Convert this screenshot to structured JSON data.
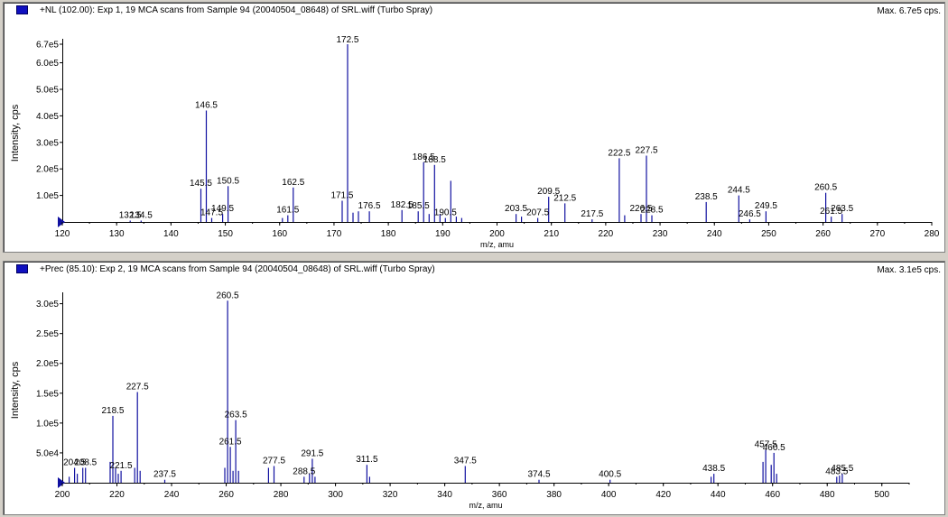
{
  "colors": {
    "peak": "#1010a0",
    "axis": "#000000",
    "label": "#000000",
    "marker": "#1010c0"
  },
  "panels": [
    {
      "title": "+NL (102.00): Exp 1, 19 MCA scans from Sample 94 (20040504_08648) of SRL.wiff (Turbo Spray)",
      "max_label": "Max. 6.7e5 cps."
    },
    {
      "title": "+Prec (85.10): Exp 2, 19 MCA scans from Sample 94 (20040504_08648) of SRL.wiff (Turbo Spray)",
      "max_label": "Max. 3.1e5 cps."
    }
  ],
  "chart_data": [
    {
      "type": "bar",
      "xlabel": "m/z, amu",
      "ylabel": "Intensity, cps",
      "xlim": [
        120,
        280
      ],
      "ylim": [
        0,
        670000
      ],
      "x_ticks": [
        120,
        130,
        140,
        150,
        160,
        170,
        180,
        190,
        200,
        210,
        220,
        230,
        240,
        250,
        260,
        270,
        280
      ],
      "x_tick_labels": [
        "120",
        "130",
        "140",
        "150",
        "160",
        "170",
        "180",
        "190",
        "200",
        "210",
        "220",
        "230",
        "240",
        "250",
        "260",
        "270",
        "280"
      ],
      "y_ticks": [
        100000,
        200000,
        300000,
        400000,
        500000,
        600000,
        670000
      ],
      "y_tick_labels": [
        "1.0e5",
        "2.0e5",
        "3.0e5",
        "4.0e5",
        "5.0e5",
        "6.0e5",
        "6.7e5"
      ],
      "peaks": [
        {
          "mz": 132.5,
          "intensity": 5000
        },
        {
          "mz": 134.5,
          "intensity": 5000
        },
        {
          "mz": 145.5,
          "intensity": 125000
        },
        {
          "mz": 146.5,
          "intensity": 420000
        },
        {
          "mz": 147.5,
          "intensity": 15000
        },
        {
          "mz": 149.5,
          "intensity": 30000
        },
        {
          "mz": 150.5,
          "intensity": 135000
        },
        {
          "mz": 160.5,
          "intensity": 15000
        },
        {
          "mz": 161.5,
          "intensity": 25000
        },
        {
          "mz": 162.5,
          "intensity": 130000
        },
        {
          "mz": 171.5,
          "intensity": 80000
        },
        {
          "mz": 172.5,
          "intensity": 670000
        },
        {
          "mz": 173.5,
          "intensity": 35000
        },
        {
          "mz": 174.5,
          "intensity": 40000
        },
        {
          "mz": 176.5,
          "intensity": 40000
        },
        {
          "mz": 182.5,
          "intensity": 45000
        },
        {
          "mz": 185.5,
          "intensity": 40000
        },
        {
          "mz": 186.5,
          "intensity": 225000
        },
        {
          "mz": 187.5,
          "intensity": 30000
        },
        {
          "mz": 188.5,
          "intensity": 215000
        },
        {
          "mz": 189.5,
          "intensity": 30000
        },
        {
          "mz": 190.5,
          "intensity": 15000
        },
        {
          "mz": 191.5,
          "intensity": 155000
        },
        {
          "mz": 192.5,
          "intensity": 20000
        },
        {
          "mz": 193.5,
          "intensity": 15000
        },
        {
          "mz": 203.5,
          "intensity": 30000
        },
        {
          "mz": 204.5,
          "intensity": 20000
        },
        {
          "mz": 207.5,
          "intensity": 15000
        },
        {
          "mz": 209.5,
          "intensity": 95000
        },
        {
          "mz": 212.5,
          "intensity": 70000
        },
        {
          "mz": 217.5,
          "intensity": 10000
        },
        {
          "mz": 222.5,
          "intensity": 240000
        },
        {
          "mz": 223.5,
          "intensity": 25000
        },
        {
          "mz": 226.5,
          "intensity": 30000
        },
        {
          "mz": 227.5,
          "intensity": 250000
        },
        {
          "mz": 228.5,
          "intensity": 25000
        },
        {
          "mz": 238.5,
          "intensity": 75000
        },
        {
          "mz": 244.5,
          "intensity": 100000
        },
        {
          "mz": 246.5,
          "intensity": 10000
        },
        {
          "mz": 249.5,
          "intensity": 40000
        },
        {
          "mz": 260.5,
          "intensity": 110000
        },
        {
          "mz": 261.5,
          "intensity": 20000
        },
        {
          "mz": 263.5,
          "intensity": 30000
        }
      ],
      "annotations": [
        {
          "mz": 132.5,
          "intensity": 5000,
          "text": "132.5"
        },
        {
          "mz": 134.5,
          "intensity": 5000,
          "text": "134.5"
        },
        {
          "mz": 145.5,
          "intensity": 125000,
          "text": "145.5"
        },
        {
          "mz": 146.5,
          "intensity": 420000,
          "text": "146.5"
        },
        {
          "mz": 147.5,
          "intensity": 15000,
          "text": "147.5"
        },
        {
          "mz": 149.5,
          "intensity": 30000,
          "text": "149.5"
        },
        {
          "mz": 150.5,
          "intensity": 135000,
          "text": "150.5"
        },
        {
          "mz": 161.5,
          "intensity": 25000,
          "text": "161.5"
        },
        {
          "mz": 162.5,
          "intensity": 130000,
          "text": "162.5"
        },
        {
          "mz": 171.5,
          "intensity": 80000,
          "text": "171.5"
        },
        {
          "mz": 172.5,
          "intensity": 670000,
          "text": "172.5"
        },
        {
          "mz": 176.5,
          "intensity": 40000,
          "text": "176.5"
        },
        {
          "mz": 182.5,
          "intensity": 45000,
          "text": "182.5"
        },
        {
          "mz": 185.5,
          "intensity": 40000,
          "text": "185.5"
        },
        {
          "mz": 186.5,
          "intensity": 225000,
          "text": "186.5"
        },
        {
          "mz": 188.5,
          "intensity": 215000,
          "text": "188.5"
        },
        {
          "mz": 190.5,
          "intensity": 15000,
          "text": "190.5"
        },
        {
          "mz": 203.5,
          "intensity": 30000,
          "text": "203.5"
        },
        {
          "mz": 207.5,
          "intensity": 15000,
          "text": "207.5"
        },
        {
          "mz": 209.5,
          "intensity": 95000,
          "text": "209.5"
        },
        {
          "mz": 212.5,
          "intensity": 70000,
          "text": "212.5"
        },
        {
          "mz": 217.5,
          "intensity": 10000,
          "text": "217.5"
        },
        {
          "mz": 222.5,
          "intensity": 240000,
          "text": "222.5"
        },
        {
          "mz": 226.5,
          "intensity": 30000,
          "text": "226.5"
        },
        {
          "mz": 227.5,
          "intensity": 250000,
          "text": "227.5"
        },
        {
          "mz": 228.5,
          "intensity": 25000,
          "text": "228.5"
        },
        {
          "mz": 238.5,
          "intensity": 75000,
          "text": "238.5"
        },
        {
          "mz": 244.5,
          "intensity": 100000,
          "text": "244.5"
        },
        {
          "mz": 246.5,
          "intensity": 10000,
          "text": "246.5"
        },
        {
          "mz": 249.5,
          "intensity": 40000,
          "text": "249.5"
        },
        {
          "mz": 260.5,
          "intensity": 110000,
          "text": "260.5"
        },
        {
          "mz": 261.5,
          "intensity": 20000,
          "text": "261.5"
        },
        {
          "mz": 263.5,
          "intensity": 30000,
          "text": "263.5"
        }
      ]
    },
    {
      "type": "bar",
      "xlabel": "m/z, amu",
      "ylabel": "Intensity, cps",
      "xlim": [
        200,
        510
      ],
      "ylim": [
        0,
        310000
      ],
      "x_ticks": [
        200,
        220,
        240,
        260,
        280,
        300,
        320,
        340,
        360,
        380,
        400,
        420,
        440,
        460,
        480,
        500
      ],
      "x_tick_labels": [
        "200",
        "220",
        "240",
        "260",
        "280",
        "300",
        "320",
        "340",
        "360",
        "380",
        "400",
        "420",
        "440",
        "460",
        "480",
        "500"
      ],
      "y_ticks": [
        50000,
        100000,
        150000,
        200000,
        250000,
        300000
      ],
      "y_tick_labels": [
        "5.0e4",
        "1.0e5",
        "1.5e5",
        "2.0e5",
        "2.5e5",
        "3.0e5"
      ],
      "peaks": [
        {
          "mz": 202.5,
          "intensity": 10000
        },
        {
          "mz": 204.5,
          "intensity": 25000
        },
        {
          "mz": 205.5,
          "intensity": 15000
        },
        {
          "mz": 207.5,
          "intensity": 25000
        },
        {
          "mz": 208.5,
          "intensity": 25000
        },
        {
          "mz": 217.5,
          "intensity": 35000
        },
        {
          "mz": 218.5,
          "intensity": 112000
        },
        {
          "mz": 219.5,
          "intensity": 25000
        },
        {
          "mz": 220.5,
          "intensity": 15000
        },
        {
          "mz": 221.5,
          "intensity": 20000
        },
        {
          "mz": 226.5,
          "intensity": 25000
        },
        {
          "mz": 227.5,
          "intensity": 152000
        },
        {
          "mz": 228.5,
          "intensity": 20000
        },
        {
          "mz": 237.5,
          "intensity": 5000
        },
        {
          "mz": 259.5,
          "intensity": 25000
        },
        {
          "mz": 260.5,
          "intensity": 305000
        },
        {
          "mz": 261.5,
          "intensity": 60000
        },
        {
          "mz": 262.5,
          "intensity": 20000
        },
        {
          "mz": 263.5,
          "intensity": 105000
        },
        {
          "mz": 264.5,
          "intensity": 20000
        },
        {
          "mz": 275.5,
          "intensity": 25000
        },
        {
          "mz": 277.5,
          "intensity": 28000
        },
        {
          "mz": 288.5,
          "intensity": 10000
        },
        {
          "mz": 290.5,
          "intensity": 15000
        },
        {
          "mz": 291.5,
          "intensity": 40000
        },
        {
          "mz": 292.5,
          "intensity": 10000
        },
        {
          "mz": 311.5,
          "intensity": 30000
        },
        {
          "mz": 312.5,
          "intensity": 10000
        },
        {
          "mz": 347.5,
          "intensity": 28000
        },
        {
          "mz": 374.5,
          "intensity": 5000
        },
        {
          "mz": 400.5,
          "intensity": 5000
        },
        {
          "mz": 437.5,
          "intensity": 10000
        },
        {
          "mz": 438.5,
          "intensity": 15000
        },
        {
          "mz": 456.5,
          "intensity": 35000
        },
        {
          "mz": 457.5,
          "intensity": 55000
        },
        {
          "mz": 459.5,
          "intensity": 30000
        },
        {
          "mz": 460.5,
          "intensity": 50000
        },
        {
          "mz": 461.5,
          "intensity": 15000
        },
        {
          "mz": 483.5,
          "intensity": 10000
        },
        {
          "mz": 484.5,
          "intensity": 12000
        },
        {
          "mz": 485.5,
          "intensity": 15000
        }
      ],
      "annotations": [
        {
          "mz": 204.5,
          "intensity": 25000,
          "text": "204.5"
        },
        {
          "mz": 208.5,
          "intensity": 25000,
          "text": "208.5"
        },
        {
          "mz": 218.5,
          "intensity": 112000,
          "text": "218.5"
        },
        {
          "mz": 221.5,
          "intensity": 20000,
          "text": "221.5"
        },
        {
          "mz": 227.5,
          "intensity": 152000,
          "text": "227.5"
        },
        {
          "mz": 237.5,
          "intensity": 5000,
          "text": "237.5"
        },
        {
          "mz": 260.5,
          "intensity": 305000,
          "text": "260.5"
        },
        {
          "mz": 261.5,
          "intensity": 60000,
          "text": "261.5"
        },
        {
          "mz": 263.5,
          "intensity": 105000,
          "text": "263.5"
        },
        {
          "mz": 277.5,
          "intensity": 28000,
          "text": "277.5"
        },
        {
          "mz": 288.5,
          "intensity": 10000,
          "text": "288.5"
        },
        {
          "mz": 291.5,
          "intensity": 40000,
          "text": "291.5"
        },
        {
          "mz": 311.5,
          "intensity": 30000,
          "text": "311.5"
        },
        {
          "mz": 347.5,
          "intensity": 28000,
          "text": "347.5"
        },
        {
          "mz": 374.5,
          "intensity": 5000,
          "text": "374.5"
        },
        {
          "mz": 400.5,
          "intensity": 5000,
          "text": "400.5"
        },
        {
          "mz": 438.5,
          "intensity": 15000,
          "text": "438.5"
        },
        {
          "mz": 457.5,
          "intensity": 55000,
          "text": "457.5"
        },
        {
          "mz": 460.5,
          "intensity": 50000,
          "text": "460.5"
        },
        {
          "mz": 483.5,
          "intensity": 10000,
          "text": "483.5"
        },
        {
          "mz": 485.5,
          "intensity": 15000,
          "text": "485.5"
        }
      ]
    }
  ]
}
